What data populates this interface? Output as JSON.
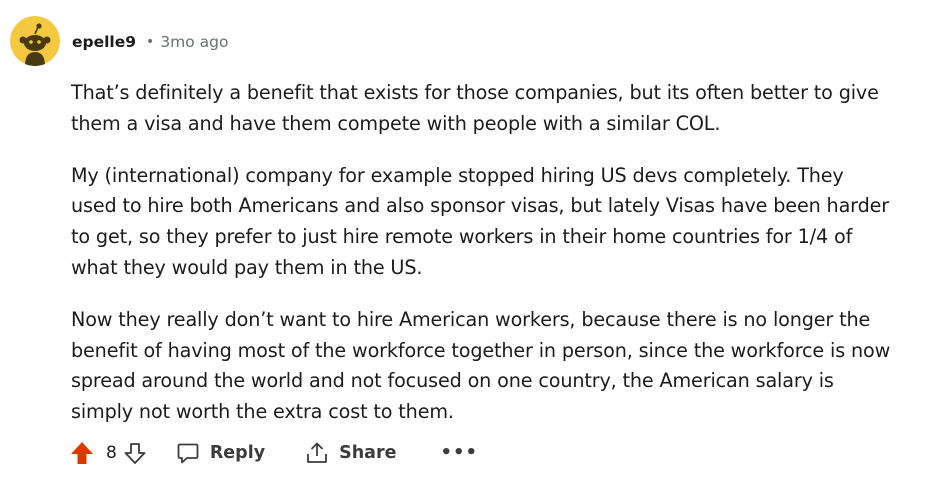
{
  "comment": {
    "author": "epelle9",
    "separator": "•",
    "timestamp": "3mo ago",
    "paragraphs": [
      "That’s definitely a benefit that exists for those companies, but its often better to give them a visa and have them compete with people with a similar COL.",
      "My (international) company for example stopped hiring US devs completely. They used to hire both Americans and also sponsor visas, but lately Visas have been harder to get, so they prefer to just hire remote workers in their home countries for 1/4 of what they would pay them in the US.",
      "Now they really don’t want to hire American workers, because there is no longer the benefit of having most of the workforce together in person, since the workforce is now spread around the world and not focused on one country, the American salary is simply not worth the extra cost to them."
    ]
  },
  "actions": {
    "score": "8",
    "reply_label": "Reply",
    "share_label": "Share",
    "more_label": "•••"
  },
  "colors": {
    "upvote_active": "#d93a00",
    "avatar_bg": "#f5c842",
    "text": "#1c1c1c",
    "muted": "#6b6f73"
  },
  "icons": {
    "avatar": "snoo-avatar-icon",
    "upvote": "upvote-arrow-icon",
    "downvote": "downvote-arrow-icon",
    "reply": "speech-bubble-icon",
    "share": "share-icon",
    "more": "ellipsis-icon"
  }
}
